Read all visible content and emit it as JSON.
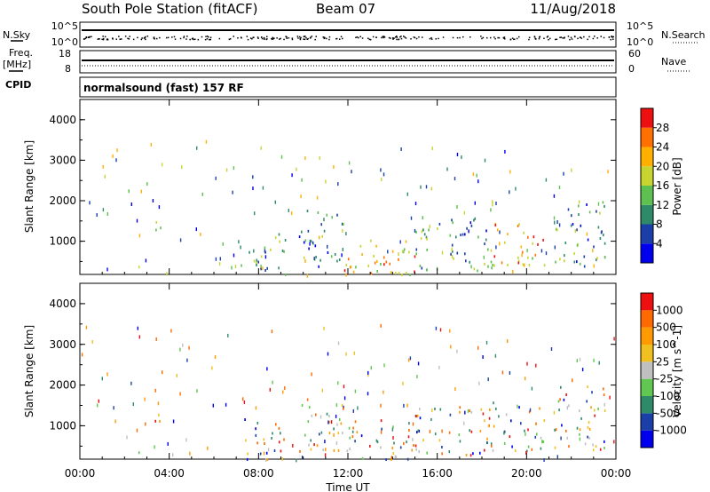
{
  "header": {
    "station": "South Pole Station (fitACF)",
    "beam": "Beam 07",
    "date": "11/Aug/2018"
  },
  "status": {
    "nsky_label": "N.Sky",
    "nsky_ticks": [
      "10^5",
      "10^0"
    ],
    "nsearch_label": "N.Search",
    "nsearch_ticks": [
      "10^5",
      "10^0"
    ],
    "freq_label_1": "Freq.",
    "freq_label_2": "[MHz]",
    "freq_ticks": [
      "18",
      "8"
    ],
    "nave_label": "Nave",
    "nave_ticks": [
      "60",
      "0"
    ],
    "cpid_label": "CPID",
    "cpid_value": "normalsound (fast) 157 RF"
  },
  "colors": {
    "power_scale": [
      "#0000ee",
      "#1a3fa8",
      "#2f8a6a",
      "#5ec050",
      "#c8d430",
      "#ffb000",
      "#ff7000",
      "#ee1010"
    ],
    "velocity_scale": [
      "#ee1010",
      "#ff6a00",
      "#ff9a00",
      "#f0c020",
      "#c0c0c0",
      "#60c850",
      "#2f8a6a",
      "#1a3fa8",
      "#0000ee"
    ]
  },
  "chart_data": [
    {
      "type": "heatmap",
      "title": "",
      "xlabel": "Time UT",
      "ylabel": "Slant Range [km]",
      "x_tick_labels": [
        "00:00",
        "04:00",
        "08:00",
        "12:00",
        "16:00",
        "20:00",
        "00:00"
      ],
      "y_tick_labels": [
        "1000",
        "2000",
        "3000",
        "4000"
      ],
      "xlim_hours": [
        0,
        24
      ],
      "ylim_km": [
        180,
        4500
      ],
      "colorbar": {
        "label": "Power [dB]",
        "ticks": [
          "4",
          "8",
          "12",
          "16",
          "20",
          "24",
          "28"
        ],
        "range": [
          0,
          30
        ]
      },
      "echo_regions": [
        {
          "t_start": 2.6,
          "t_end": 3.2,
          "r_min": 180,
          "r_max": 400,
          "level": "high"
        },
        {
          "t_start": 3.1,
          "t_end": 3.6,
          "r_min": 900,
          "r_max": 1500,
          "level": "mid"
        },
        {
          "t_start": 7.2,
          "t_end": 9.2,
          "r_min": 200,
          "r_max": 1200,
          "level": "mixed"
        },
        {
          "t_start": 9.8,
          "t_end": 11.8,
          "r_min": 400,
          "r_max": 1800,
          "level": "mixed"
        },
        {
          "t_start": 11.8,
          "t_end": 15.0,
          "r_min": 200,
          "r_max": 1200,
          "level": "high"
        },
        {
          "t_start": 15.0,
          "t_end": 18.5,
          "r_min": 300,
          "r_max": 1600,
          "level": "mixed"
        },
        {
          "t_start": 18.5,
          "t_end": 20.8,
          "r_min": 400,
          "r_max": 1500,
          "level": "high"
        },
        {
          "t_start": 21.2,
          "t_end": 23.5,
          "r_min": 400,
          "r_max": 2000,
          "level": "mixed"
        }
      ]
    },
    {
      "type": "heatmap",
      "title": "",
      "xlabel": "Time UT",
      "ylabel": "Slant Range [km]",
      "x_tick_labels": [
        "00:00",
        "04:00",
        "08:00",
        "12:00",
        "16:00",
        "20:00",
        "00:00"
      ],
      "y_tick_labels": [
        "1000",
        "2000",
        "3000",
        "4000"
      ],
      "xlim_hours": [
        0,
        24
      ],
      "ylim_km": [
        180,
        4500
      ],
      "colorbar": {
        "label": "Velocity [m s^-1]",
        "ticks": [
          "1000",
          "500",
          "100",
          "25",
          "-25",
          "-100",
          "-500",
          "-1000"
        ],
        "range": [
          -1200,
          1200
        ]
      },
      "echo_regions": [
        {
          "t_start": 2.6,
          "t_end": 3.2,
          "r_min": 180,
          "r_max": 400,
          "level": "mixed"
        },
        {
          "t_start": 3.1,
          "t_end": 3.6,
          "r_min": 900,
          "r_max": 1500,
          "level": "mixed"
        },
        {
          "t_start": 7.2,
          "t_end": 9.2,
          "r_min": 200,
          "r_max": 1200,
          "level": "mixed"
        },
        {
          "t_start": 9.8,
          "t_end": 11.8,
          "r_min": 400,
          "r_max": 1800,
          "level": "mixed"
        },
        {
          "t_start": 11.8,
          "t_end": 15.0,
          "r_min": 200,
          "r_max": 1200,
          "level": "mixed"
        },
        {
          "t_start": 15.0,
          "t_end": 18.5,
          "r_min": 300,
          "r_max": 1600,
          "level": "mixed"
        },
        {
          "t_start": 18.5,
          "t_end": 20.8,
          "r_min": 400,
          "r_max": 1500,
          "level": "mixed"
        },
        {
          "t_start": 21.2,
          "t_end": 23.5,
          "r_min": 400,
          "r_max": 2000,
          "level": "mixed"
        }
      ]
    }
  ]
}
